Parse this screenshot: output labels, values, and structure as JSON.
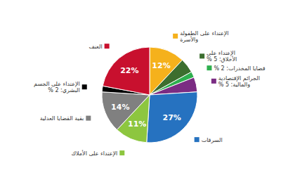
{
  "chart_data": {
    "type": "pie",
    "categories": [
      "الإعتداء على الطفولة والأسرة",
      "الإعتداء على الأخلاق: 5 %",
      "قضايا المخدرات: 2 %",
      "الجرائم الإقتصادية والمالية: 5 %",
      "السرقات",
      "الإعتداء على الأملاك",
      "بقية القضايا العدلية",
      "الإعتداء على الجسم البشري: 2 %",
      "العنف"
    ],
    "values": [
      12,
      5,
      2,
      5,
      27,
      11,
      14,
      2,
      22
    ],
    "value_labels": [
      "12%",
      null,
      null,
      null,
      "27%",
      "11%",
      "14%",
      null,
      "22%"
    ],
    "colors": [
      "#F5B11C",
      "#3C6E2E",
      "#2EAF4E",
      "#7B2C83",
      "#2672C0",
      "#8DC63F",
      "#808080",
      "#000000",
      "#C8102E"
    ],
    "data_labels": true
  }
}
